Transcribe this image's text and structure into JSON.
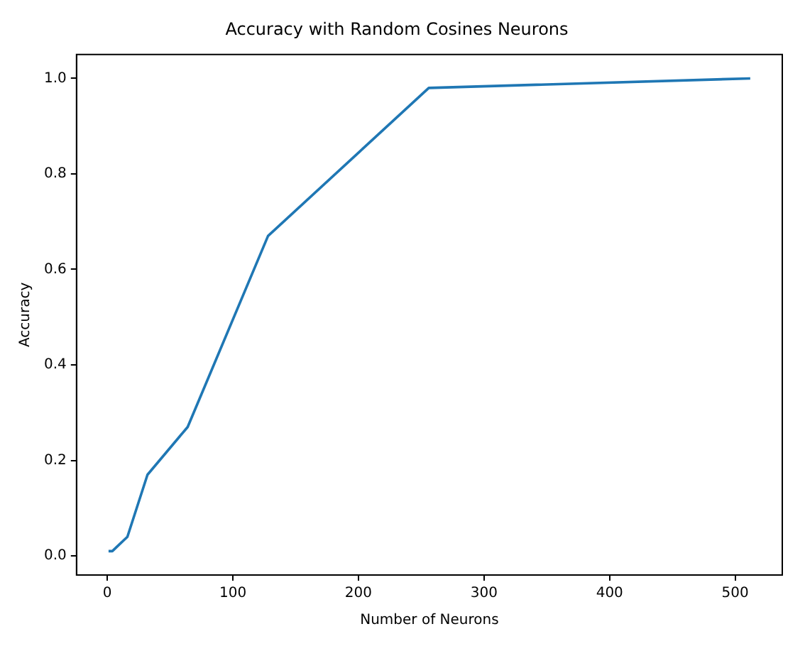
{
  "chart_data": {
    "type": "line",
    "title": "Accuracy with Random Cosines Neurons",
    "xlabel": "Number of Neurons",
    "ylabel": "Accuracy",
    "x": [
      1,
      2,
      4,
      8,
      16,
      32,
      64,
      128,
      256,
      512
    ],
    "series": [
      {
        "color": "#1f77b4",
        "values": [
          0.01,
          0.01,
          0.01,
          0.02,
          0.04,
          0.17,
          0.27,
          0.67,
          0.98,
          1.0
        ]
      }
    ],
    "xlim": [
      -24.5,
      537.5
    ],
    "ylim": [
      -0.04,
      1.05
    ],
    "xticks": [
      0,
      100,
      200,
      300,
      400,
      500
    ],
    "yticks": [
      {
        "value": 0,
        "label": "0.0"
      },
      {
        "value": 0.2,
        "label": "0.2"
      },
      {
        "value": 0.4,
        "label": "0.4"
      },
      {
        "value": 0.6,
        "label": "0.6"
      },
      {
        "value": 0.8,
        "label": "0.8"
      },
      {
        "value": 1,
        "label": "1.0"
      }
    ],
    "grid": false,
    "legend": false
  }
}
